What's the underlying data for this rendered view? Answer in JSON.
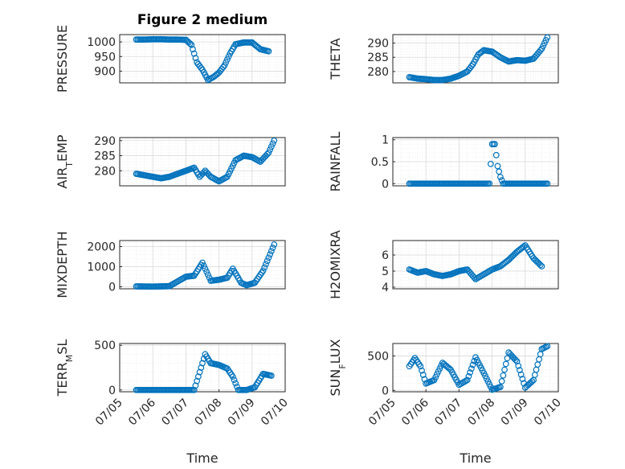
{
  "figure": {
    "title": "Figure 2 medium",
    "marker_color": "#0072BD"
  },
  "chart_data": [
    {
      "type": "scatter",
      "ylabel": "PRESSURE",
      "ylabel_sub": "",
      "ylim": [
        860,
        1025
      ],
      "yticks": [
        900,
        950,
        1000
      ],
      "ytick_labels": [
        "900",
        "950",
        "1000"
      ],
      "xlim": [
        "07/05",
        "07/10"
      ],
      "xticks": [],
      "xlabel": "",
      "grid": "on",
      "points": [
        [
          "07/05 12:00",
          1008
        ],
        [
          "07/05 18:00",
          1008
        ],
        [
          "07/06 00:00",
          1009
        ],
        [
          "07/06 06:00",
          1009
        ],
        [
          "07/06 12:00",
          1008
        ],
        [
          "07/06 18:00",
          1008
        ],
        [
          "07/07 00:00",
          1007
        ],
        [
          "07/07 04:00",
          990
        ],
        [
          "07/07 08:00",
          930
        ],
        [
          "07/07 12:00",
          905
        ],
        [
          "07/07 16:00",
          870
        ],
        [
          "07/07 20:00",
          880
        ],
        [
          "07/08 00:00",
          895
        ],
        [
          "07/08 04:00",
          920
        ],
        [
          "07/08 08:00",
          960
        ],
        [
          "07/08 12:00",
          992
        ],
        [
          "07/08 18:00",
          998
        ],
        [
          "07/09 00:00",
          998
        ],
        [
          "07/09 06:00",
          975
        ],
        [
          "07/09 12:00",
          968
        ]
      ]
    },
    {
      "type": "scatter",
      "ylabel": "THETA",
      "ylabel_sub": "",
      "ylim": [
        276,
        293
      ],
      "yticks": [
        280,
        285,
        290
      ],
      "ytick_labels": [
        "280",
        "285",
        "290"
      ],
      "xlim": [
        "07/05",
        "07/10"
      ],
      "xticks": [],
      "xlabel": "",
      "grid": "on",
      "points": [
        [
          "07/05 12:00",
          278
        ],
        [
          "07/05 18:00",
          277.5
        ],
        [
          "07/06 00:00",
          277.3
        ],
        [
          "07/06 06:00",
          277
        ],
        [
          "07/06 12:00",
          277
        ],
        [
          "07/06 18:00",
          277.5
        ],
        [
          "07/07 00:00",
          278.5
        ],
        [
          "07/07 06:00",
          280
        ],
        [
          "07/07 10:00",
          282.5
        ],
        [
          "07/07 14:00",
          286
        ],
        [
          "07/07 18:00",
          287.5
        ],
        [
          "07/08 00:00",
          287
        ],
        [
          "07/08 06:00",
          285
        ],
        [
          "07/08 12:00",
          283.5
        ],
        [
          "07/08 18:00",
          284
        ],
        [
          "07/09 00:00",
          283.8
        ],
        [
          "07/09 06:00",
          284.5
        ],
        [
          "07/09 12:00",
          288
        ],
        [
          "07/09 16:00",
          292
        ]
      ]
    },
    {
      "type": "scatter",
      "ylabel": "AIR",
      "ylabel_sub": "T",
      "ylabel_tail": "EMP",
      "ylim": [
        275,
        291
      ],
      "yticks": [
        280,
        285,
        290
      ],
      "ytick_labels": [
        "280",
        "285",
        "290"
      ],
      "xlim": [
        "07/05",
        "07/10"
      ],
      "xticks": [],
      "xlabel": "",
      "grid": "on",
      "points": [
        [
          "07/05 12:00",
          279
        ],
        [
          "07/05 18:00",
          278.5
        ],
        [
          "07/06 00:00",
          278
        ],
        [
          "07/06 06:00",
          277.5
        ],
        [
          "07/06 12:00",
          278
        ],
        [
          "07/06 18:00",
          279
        ],
        [
          "07/07 00:00",
          280
        ],
        [
          "07/07 06:00",
          281
        ],
        [
          "07/07 10:00",
          278
        ],
        [
          "07/07 14:00",
          280
        ],
        [
          "07/07 18:00",
          278
        ],
        [
          "07/08 00:00",
          276.5
        ],
        [
          "07/08 06:00",
          278
        ],
        [
          "07/08 12:00",
          283.5
        ],
        [
          "07/08 18:00",
          285
        ],
        [
          "07/09 00:00",
          284.5
        ],
        [
          "07/09 06:00",
          283
        ],
        [
          "07/09 12:00",
          286
        ],
        [
          "07/09 16:00",
          290
        ]
      ]
    },
    {
      "type": "scatter",
      "ylabel": "RAINFALL",
      "ylabel_sub": "",
      "ylim": [
        -0.05,
        1.05
      ],
      "yticks": [
        0,
        0.5,
        1
      ],
      "ytick_labels": [
        "0",
        "0.5",
        "1"
      ],
      "xlim": [
        "07/05",
        "07/10"
      ],
      "xticks": [],
      "xlabel": "",
      "grid": "on",
      "points": [
        [
          "07/05 12:00",
          0
        ],
        [
          "07/06 00:00",
          0
        ],
        [
          "07/06 12:00",
          0
        ],
        [
          "07/07 00:00",
          0
        ],
        [
          "07/07 12:00",
          0
        ],
        [
          "07/07 22:00",
          0
        ],
        [
          "07/08 00:00",
          0.9
        ],
        [
          "07/08 02:00",
          0.9
        ],
        [
          "07/08 04:00",
          0.4
        ],
        [
          "07/08 06:00",
          0.15
        ],
        [
          "07/08 08:00",
          0
        ],
        [
          "07/08 12:00",
          0
        ],
        [
          "07/09 00:00",
          0
        ],
        [
          "07/09 12:00",
          0
        ],
        [
          "07/09 16:00",
          0
        ]
      ]
    },
    {
      "type": "scatter",
      "ylabel": "MIXDEPTH",
      "ylabel_sub": "",
      "ylim": [
        -100,
        2300
      ],
      "yticks": [
        0,
        1000,
        2000
      ],
      "ytick_labels": [
        "0",
        "1000",
        "2000"
      ],
      "xlim": [
        "07/05",
        "07/10"
      ],
      "xticks": [],
      "xlabel": "",
      "grid": "on",
      "points": [
        [
          "07/05 12:00",
          20
        ],
        [
          "07/06 00:00",
          10
        ],
        [
          "07/06 12:00",
          30
        ],
        [
          "07/07 00:00",
          500
        ],
        [
          "07/07 06:00",
          550
        ],
        [
          "07/07 12:00",
          1200
        ],
        [
          "07/07 18:00",
          300
        ],
        [
          "07/08 00:00",
          350
        ],
        [
          "07/08 06:00",
          450
        ],
        [
          "07/08 10:00",
          900
        ],
        [
          "07/08 16:00",
          200
        ],
        [
          "07/08 20:00",
          80
        ],
        [
          "07/09 02:00",
          200
        ],
        [
          "07/09 08:00",
          800
        ],
        [
          "07/09 16:00",
          2100
        ]
      ]
    },
    {
      "type": "scatter",
      "ylabel": "H2OMIXRA",
      "ylabel_sub": "",
      "ylim": [
        3.9,
        6.9
      ],
      "yticks": [
        4,
        5,
        6
      ],
      "ytick_labels": [
        "4",
        "5",
        "6"
      ],
      "xlim": [
        "07/05",
        "07/10"
      ],
      "xticks": [],
      "xlabel": "",
      "grid": "on",
      "points": [
        [
          "07/05 12:00",
          5.1
        ],
        [
          "07/05 18:00",
          4.9
        ],
        [
          "07/06 00:00",
          5.0
        ],
        [
          "07/06 06:00",
          4.8
        ],
        [
          "07/06 12:00",
          4.7
        ],
        [
          "07/06 18:00",
          4.8
        ],
        [
          "07/07 00:00",
          5.0
        ],
        [
          "07/07 06:00",
          5.1
        ],
        [
          "07/07 12:00",
          4.5
        ],
        [
          "07/07 18:00",
          4.8
        ],
        [
          "07/08 00:00",
          5.1
        ],
        [
          "07/08 06:00",
          5.3
        ],
        [
          "07/08 12:00",
          5.7
        ],
        [
          "07/08 18:00",
          6.2
        ],
        [
          "07/09 00:00",
          6.6
        ],
        [
          "07/09 06:00",
          5.8
        ],
        [
          "07/09 12:00",
          5.3
        ]
      ]
    },
    {
      "type": "scatter",
      "ylabel": "TERR",
      "ylabel_sub": "M",
      "ylabel_tail": "SL",
      "ylim": [
        -20,
        520
      ],
      "yticks": [
        0,
        500
      ],
      "ytick_labels": [
        "0",
        "500"
      ],
      "xlim": [
        "07/05",
        "07/10"
      ],
      "xticks": [
        "07/05",
        "07/06",
        "07/07",
        "07/08",
        "07/09",
        "07/10"
      ],
      "xlabel": "Time",
      "grid": "on",
      "points": [
        [
          "07/05 12:00",
          0
        ],
        [
          "07/06 00:00",
          0
        ],
        [
          "07/06 12:00",
          0
        ],
        [
          "07/07 00:00",
          0
        ],
        [
          "07/07 06:00",
          0
        ],
        [
          "07/07 10:00",
          200
        ],
        [
          "07/07 14:00",
          400
        ],
        [
          "07/07 18:00",
          300
        ],
        [
          "07/08 00:00",
          280
        ],
        [
          "07/08 06:00",
          240
        ],
        [
          "07/08 10:00",
          150
        ],
        [
          "07/08 14:00",
          0
        ],
        [
          "07/08 20:00",
          0
        ],
        [
          "07/09 02:00",
          30
        ],
        [
          "07/09 08:00",
          180
        ],
        [
          "07/09 14:00",
          160
        ]
      ]
    },
    {
      "type": "scatter",
      "ylabel": "SUN",
      "ylabel_sub": "F",
      "ylabel_tail": "LUX",
      "ylim": [
        -20,
        680
      ],
      "yticks": [
        0,
        500
      ],
      "ytick_labels": [
        "0",
        "500"
      ],
      "xlim": [
        "07/05",
        "07/10"
      ],
      "xticks": [
        "07/05",
        "07/06",
        "07/07",
        "07/08",
        "07/09",
        "07/10"
      ],
      "xlabel": "Time",
      "grid": "on",
      "points": [
        [
          "07/05 12:00",
          350
        ],
        [
          "07/05 16:00",
          470
        ],
        [
          "07/05 20:00",
          350
        ],
        [
          "07/06 00:00",
          100
        ],
        [
          "07/06 06:00",
          150
        ],
        [
          "07/06 12:00",
          400
        ],
        [
          "07/06 18:00",
          300
        ],
        [
          "07/07 00:00",
          80
        ],
        [
          "07/07 06:00",
          150
        ],
        [
          "07/07 12:00",
          480
        ],
        [
          "07/07 18:00",
          250
        ],
        [
          "07/08 00:00",
          10
        ],
        [
          "07/08 06:00",
          50
        ],
        [
          "07/08 12:00",
          550
        ],
        [
          "07/08 18:00",
          420
        ],
        [
          "07/09 00:00",
          40
        ],
        [
          "07/09 06:00",
          150
        ],
        [
          "07/09 12:00",
          600
        ],
        [
          "07/09 16:00",
          640
        ]
      ]
    }
  ]
}
